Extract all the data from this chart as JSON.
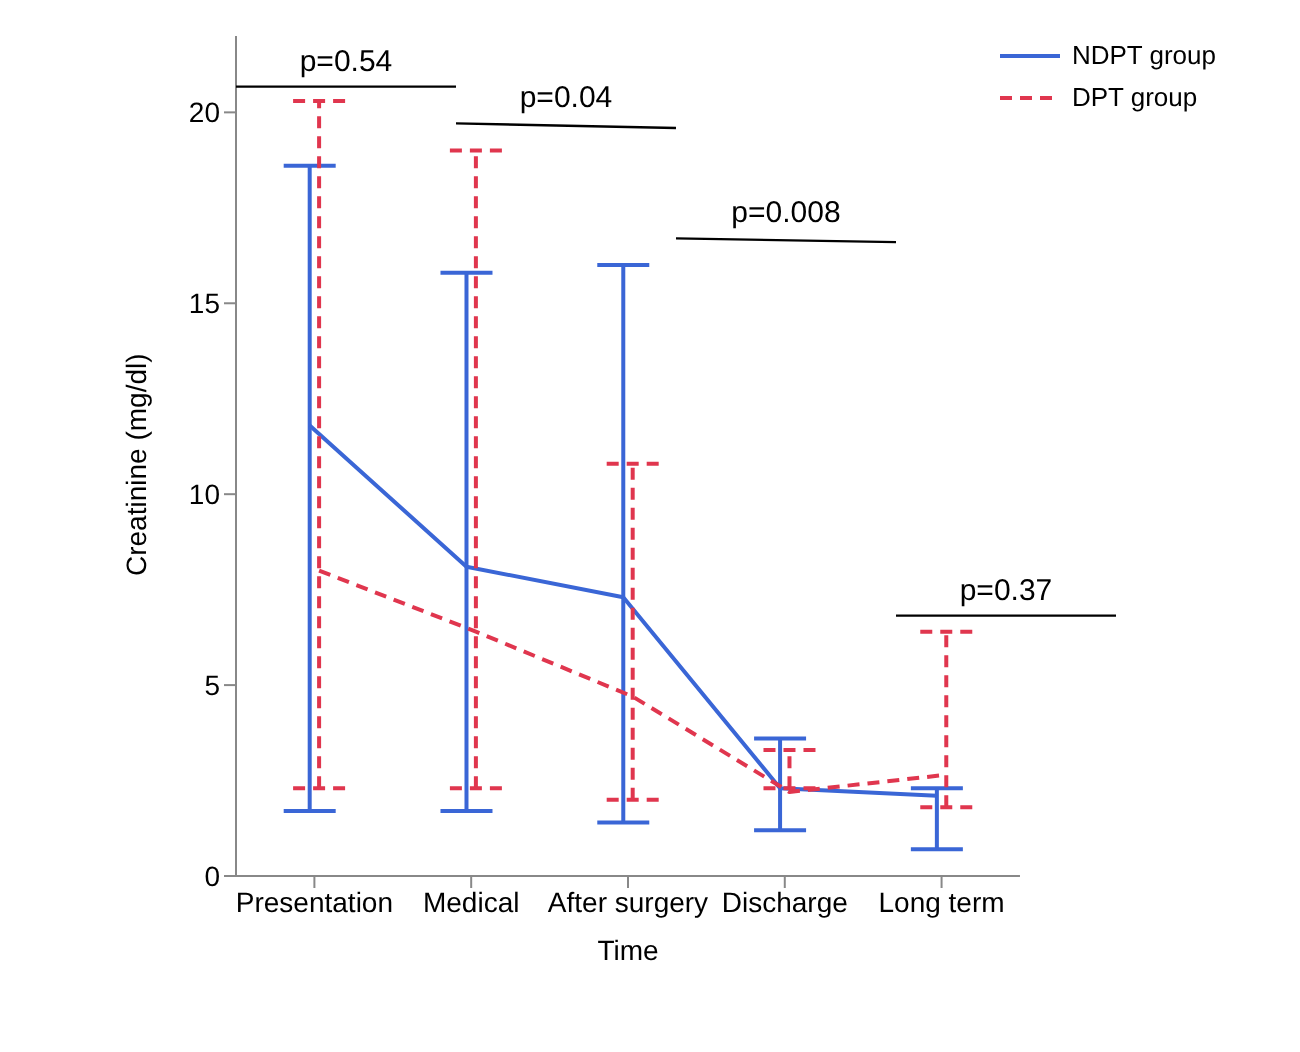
{
  "chart_data": {
    "type": "line",
    "xlabel": "Time",
    "ylabel": "Creatinine (mg/dl)",
    "categories": [
      "Presentation",
      "Medical",
      "After surgery",
      "Discharge",
      "Long term"
    ],
    "series": [
      {
        "name": "NDPT group",
        "color": "#3a66d6",
        "line_style": "solid",
        "values": [
          11.8,
          8.1,
          7.3,
          2.3,
          2.1
        ],
        "errors": [
          [
            1.7,
            18.6
          ],
          [
            1.7,
            15.8
          ],
          [
            1.4,
            16.0
          ],
          [
            1.2,
            3.6
          ],
          [
            0.7,
            2.3
          ]
        ]
      },
      {
        "name": "DPT group",
        "color": "#e0364e",
        "line_style": "dashed",
        "values": [
          8.0,
          6.4,
          4.7,
          2.2,
          2.65
        ],
        "errors": [
          [
            2.3,
            20.3
          ],
          [
            2.3,
            19.0
          ],
          [
            2.0,
            10.8
          ],
          [
            2.3,
            3.3
          ],
          [
            1.8,
            6.4
          ]
        ]
      }
    ],
    "annotations": [
      "p=0.54",
      "p=0.04",
      "p=0.008",
      "p=0.37"
    ],
    "ylim": [
      0,
      22
    ],
    "yticks": [
      0,
      5,
      10,
      15,
      20
    ],
    "grid": false,
    "legend": "top right",
    "marker": "none"
  }
}
